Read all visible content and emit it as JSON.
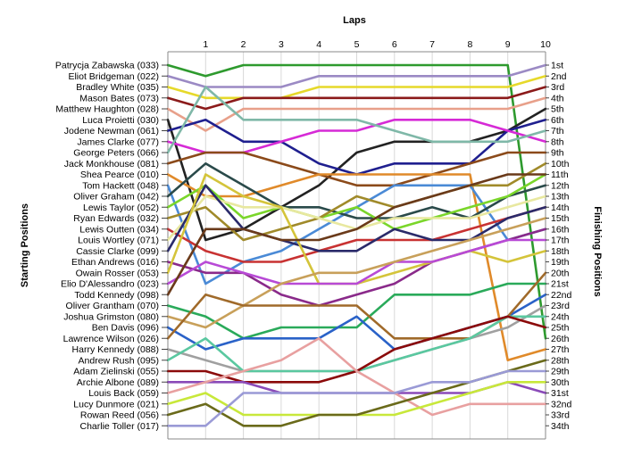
{
  "chart_data": {
    "type": "line",
    "title": "Laps",
    "xlabel": "Laps",
    "ylabel_left": "Starting Positions",
    "ylabel_right": "Finishing Positions",
    "x": [
      1,
      2,
      3,
      4,
      5,
      6,
      7,
      8,
      9,
      10
    ],
    "grid": true,
    "y_inverted": true,
    "drivers": [
      "Patrycja Zabawska (033)",
      "Eliot Bridgeman (022)",
      "Bradley White (035)",
      "Mason Bates (073)",
      "Matthew Haughton (028)",
      "Luca Proietti (030)",
      "Jodene Newman (061)",
      "James Clarke (077)",
      "George Peters (066)",
      "Jack Monkhouse (081)",
      "Shea Pearce (010)",
      "Tom Hackett (048)",
      "Oliver Graham (042)",
      "Lewis Taylor (052)",
      "Ryan Edwards (032)",
      "Lewis Outten (034)",
      "Louis Wortley (071)",
      "Cassie Clarke (099)",
      "Ethan Andrews (016)",
      "Owain Rosser (053)",
      "Elio D'Alessandro (023)",
      "Todd Kennedy (098)",
      "Oliver Grantham (070)",
      "Joshua Grimston (080)",
      "Ben Davis (096)",
      "Lawrence Wilson (026)",
      "Harry Kennedy (088)",
      "Andrew Rush (095)",
      "Adam Zielinski (055)",
      "Archie Albone (089)",
      "Louis Back (059)",
      "Lucy Dunmore (021)",
      "Rowan Reed (056)",
      "Charlie Toller (017)"
    ],
    "finishing_positions": [
      "1st",
      "2nd",
      "3rd",
      "4th",
      "5th",
      "6th",
      "7th",
      "8th",
      "9th",
      "10th",
      "11th",
      "12th",
      "13th",
      "14th",
      "15th",
      "16th",
      "17th",
      "18th",
      "19th",
      "20th",
      "21st",
      "22nd",
      "23rd",
      "24th",
      "25th",
      "26th",
      "27th",
      "28th",
      "29th",
      "30th",
      "31st",
      "32nd",
      "33rd",
      "34th"
    ],
    "series": [
      {
        "color": "#2e9a2e",
        "values": [
          2,
          1,
          1,
          1,
          1,
          1,
          1,
          1,
          1,
          26
        ]
      },
      {
        "color": "#9b8ac4",
        "values": [
          3,
          3,
          3,
          2,
          2,
          2,
          2,
          2,
          2,
          1
        ]
      },
      {
        "color": "#e6d92a",
        "values": [
          4,
          4,
          4,
          3,
          3,
          3,
          3,
          3,
          3,
          2
        ]
      },
      {
        "color": "#8b1a1a",
        "values": [
          5,
          4,
          4,
          4,
          4,
          4,
          4,
          4,
          4,
          3
        ]
      },
      {
        "color": "#e8a08a",
        "values": [
          7,
          5,
          5,
          5,
          5,
          5,
          5,
          5,
          5,
          4
        ]
      },
      {
        "color": "#222222",
        "values": [
          17,
          16,
          14,
          12,
          9,
          8,
          8,
          8,
          7,
          5
        ]
      },
      {
        "color": "#1f1f8f",
        "values": [
          6,
          8,
          8,
          10,
          11,
          10,
          10,
          10,
          7,
          6
        ]
      },
      {
        "color": "#d62ad6",
        "values": [
          9,
          9,
          8,
          7,
          7,
          6,
          6,
          6,
          7,
          8
        ]
      },
      {
        "color": "#7fb8a8",
        "values": [
          3,
          6,
          6,
          6,
          6,
          7,
          8,
          8,
          8,
          7
        ]
      },
      {
        "color": "#8b4a1a",
        "values": [
          9,
          9,
          10,
          11,
          12,
          12,
          11,
          10,
          9,
          9
        ]
      },
      {
        "color": "#e08a2a",
        "values": [
          13,
          13,
          12,
          11,
          11,
          11,
          11,
          11,
          28,
          27
        ]
      },
      {
        "color": "#4a8ad6",
        "values": [
          21,
          19,
          18,
          16,
          14,
          12,
          12,
          12,
          17,
          16
        ]
      },
      {
        "color": "#2a4a4a",
        "values": [
          10,
          12,
          14,
          14,
          15,
          15,
          14,
          15,
          13,
          12
        ]
      },
      {
        "color": "#7ad62a",
        "values": [
          12,
          15,
          14,
          15,
          14,
          16,
          15,
          14,
          13,
          11
        ]
      },
      {
        "color": "#a08a2a",
        "values": [
          14,
          17,
          16,
          15,
          13,
          14,
          13,
          12,
          12,
          10
        ]
      },
      {
        "color": "#c83232",
        "values": [
          18,
          19,
          19,
          18,
          17,
          17,
          17,
          16,
          15,
          14
        ]
      },
      {
        "color": "#e8e8a0",
        "values": [
          13,
          14,
          14,
          15,
          16,
          15,
          15,
          15,
          14,
          13
        ]
      },
      {
        "color": "#2a2a6a",
        "values": [
          12,
          16,
          17,
          18,
          18,
          16,
          17,
          17,
          15,
          14
        ]
      },
      {
        "color": "#8a2a8a",
        "values": [
          20,
          20,
          22,
          23,
          22,
          21,
          19,
          18,
          17,
          16
        ]
      },
      {
        "color": "#d4c43a",
        "values": [
          11,
          13,
          14,
          21,
          21,
          20,
          19,
          18,
          19,
          18
        ]
      },
      {
        "color": "#b84ad6",
        "values": [
          19,
          20,
          21,
          21,
          21,
          19,
          19,
          18,
          17,
          17
        ]
      },
      {
        "color": "#6a3a1a",
        "values": [
          16,
          16,
          17,
          17,
          16,
          14,
          13,
          12,
          11,
          11
        ]
      },
      {
        "color": "#2aaa5a",
        "values": [
          24,
          26,
          25,
          25,
          25,
          22,
          22,
          22,
          21,
          21
        ]
      },
      {
        "color": "#c8a05a",
        "values": [
          25,
          23,
          21,
          20,
          20,
          19,
          18,
          17,
          16,
          15
        ]
      },
      {
        "color": "#2a62c8",
        "values": [
          27,
          26,
          26,
          26,
          24,
          27,
          26,
          25,
          24,
          22
        ]
      },
      {
        "color": "#a06a2a",
        "values": [
          22,
          23,
          23,
          23,
          23,
          26,
          26,
          26,
          24,
          20
        ]
      },
      {
        "color": "#a0a0a0",
        "values": [
          28,
          29,
          29,
          29,
          29,
          28,
          27,
          26,
          25,
          23
        ]
      },
      {
        "color": "#5ac8a0",
        "values": [
          26,
          29,
          29,
          29,
          29,
          28,
          27,
          26,
          24,
          24
        ]
      },
      {
        "color": "#8b0a0a",
        "values": [
          29,
          30,
          30,
          30,
          29,
          27,
          26,
          25,
          24,
          25
        ]
      },
      {
        "color": "#8a4ab8",
        "values": [
          30,
          30,
          31,
          31,
          31,
          31,
          31,
          31,
          30,
          31
        ]
      },
      {
        "color": "#e8a0a0",
        "values": [
          30,
          29,
          28,
          26,
          29,
          31,
          33,
          32,
          32,
          32
        ]
      },
      {
        "color": "#c8e83a",
        "values": [
          31,
          33,
          33,
          33,
          33,
          33,
          32,
          31,
          30,
          30
        ]
      },
      {
        "color": "#6a6a1a",
        "values": [
          32,
          34,
          34,
          33,
          33,
          32,
          31,
          30,
          29,
          28
        ]
      },
      {
        "color": "#9a9ad6",
        "values": [
          34,
          31,
          31,
          31,
          31,
          31,
          30,
          30,
          29,
          29
        ]
      }
    ]
  }
}
